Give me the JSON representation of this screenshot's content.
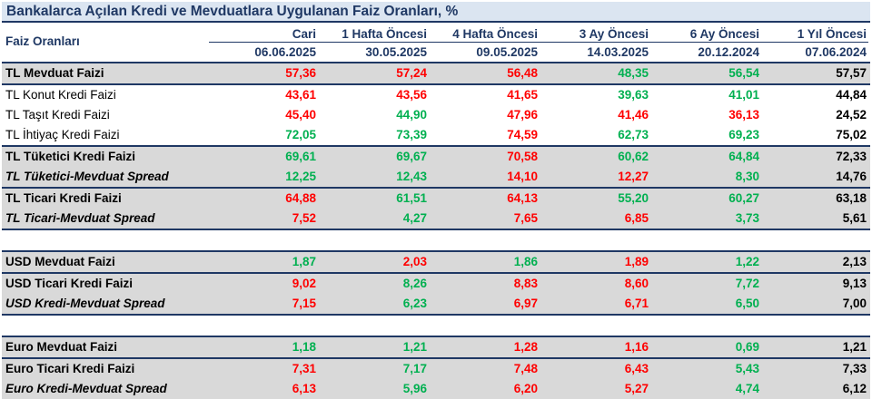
{
  "title": "Bankalarca Açılan Kredi ve Mevduatlara Uygulanan Faiz Oranları, %",
  "header": {
    "label": "Faiz Oranları",
    "columns": [
      {
        "name": "Cari",
        "date": "06.06.2025"
      },
      {
        "name": "1 Hafta Öncesi",
        "date": "30.05.2025"
      },
      {
        "name": "4 Hafta Öncesi",
        "date": "09.05.2025"
      },
      {
        "name": "3 Ay Öncesi",
        "date": "14.03.2025"
      },
      {
        "name": "6 Ay Öncesi",
        "date": "20.12.2024"
      },
      {
        "name": "1 Yıl Öncesi",
        "date": "07.06.2024"
      }
    ]
  },
  "colors": {
    "red": "#ff0000",
    "green": "#00b050",
    "black": "#000000",
    "navy": "#1f3864",
    "shade": "#d9d9d9",
    "title_bg": "#dbe5f1"
  },
  "rows": [
    {
      "label": "TL Mevduat Faizi",
      "values": [
        "57,36",
        "57,24",
        "56,48",
        "48,35",
        "56,54",
        "57,57"
      ],
      "colors": [
        "red",
        "red",
        "red",
        "green",
        "green",
        "black"
      ]
    },
    {
      "label": "TL Konut Kredi Faizi",
      "values": [
        "43,61",
        "43,56",
        "41,65",
        "39,63",
        "41,01",
        "44,84"
      ],
      "colors": [
        "red",
        "red",
        "red",
        "green",
        "green",
        "black"
      ]
    },
    {
      "label": "TL Taşıt Kredi Faizi",
      "values": [
        "45,40",
        "44,90",
        "47,96",
        "41,46",
        "36,13",
        "24,52"
      ],
      "colors": [
        "red",
        "green",
        "red",
        "red",
        "red",
        "black"
      ]
    },
    {
      "label": "TL İhtiyaç Kredi Faizi",
      "values": [
        "72,05",
        "73,39",
        "74,59",
        "62,73",
        "69,23",
        "75,02"
      ],
      "colors": [
        "green",
        "green",
        "red",
        "green",
        "green",
        "black"
      ]
    },
    {
      "label": "TL Tüketici Kredi Faizi",
      "values": [
        "69,61",
        "69,67",
        "70,58",
        "60,62",
        "64,84",
        "72,33"
      ],
      "colors": [
        "green",
        "green",
        "red",
        "green",
        "green",
        "black"
      ]
    },
    {
      "label": "TL Tüketici-Mevduat Spread",
      "values": [
        "12,25",
        "12,43",
        "14,10",
        "12,27",
        "8,30",
        "14,76"
      ],
      "colors": [
        "green",
        "green",
        "red",
        "red",
        "green",
        "black"
      ]
    },
    {
      "label": "TL Ticari Kredi Faizi",
      "values": [
        "64,88",
        "61,51",
        "64,13",
        "55,20",
        "60,27",
        "63,18"
      ],
      "colors": [
        "red",
        "green",
        "red",
        "green",
        "green",
        "black"
      ]
    },
    {
      "label": "TL Ticari-Mevduat Spread",
      "values": [
        "7,52",
        "4,27",
        "7,65",
        "6,85",
        "3,73",
        "5,61"
      ],
      "colors": [
        "red",
        "green",
        "red",
        "red",
        "green",
        "black"
      ]
    },
    {
      "label": "USD Mevduat Faizi",
      "values": [
        "1,87",
        "2,03",
        "1,86",
        "1,89",
        "1,22",
        "2,13"
      ],
      "colors": [
        "green",
        "red",
        "green",
        "red",
        "green",
        "black"
      ]
    },
    {
      "label": "USD Ticari Kredi Faizi",
      "values": [
        "9,02",
        "8,26",
        "8,83",
        "8,60",
        "7,72",
        "9,13"
      ],
      "colors": [
        "red",
        "green",
        "red",
        "red",
        "green",
        "black"
      ]
    },
    {
      "label": "USD Kredi-Mevduat Spread",
      "values": [
        "7,15",
        "6,23",
        "6,97",
        "6,71",
        "6,50",
        "7,00"
      ],
      "colors": [
        "red",
        "green",
        "red",
        "red",
        "green",
        "black"
      ]
    },
    {
      "label": "Euro Mevduat Faizi",
      "values": [
        "1,18",
        "1,21",
        "1,28",
        "1,16",
        "0,69",
        "1,21"
      ],
      "colors": [
        "green",
        "green",
        "red",
        "red",
        "green",
        "black"
      ]
    },
    {
      "label": "Euro Ticari Kredi Faizi",
      "values": [
        "7,31",
        "7,17",
        "7,48",
        "6,43",
        "5,43",
        "7,33"
      ],
      "colors": [
        "red",
        "green",
        "red",
        "red",
        "green",
        "black"
      ]
    },
    {
      "label": "Euro Kredi-Mevduat Spread",
      "values": [
        "6,13",
        "5,96",
        "6,20",
        "5,27",
        "4,74",
        "6,12"
      ],
      "colors": [
        "red",
        "green",
        "red",
        "red",
        "green",
        "black"
      ]
    }
  ]
}
